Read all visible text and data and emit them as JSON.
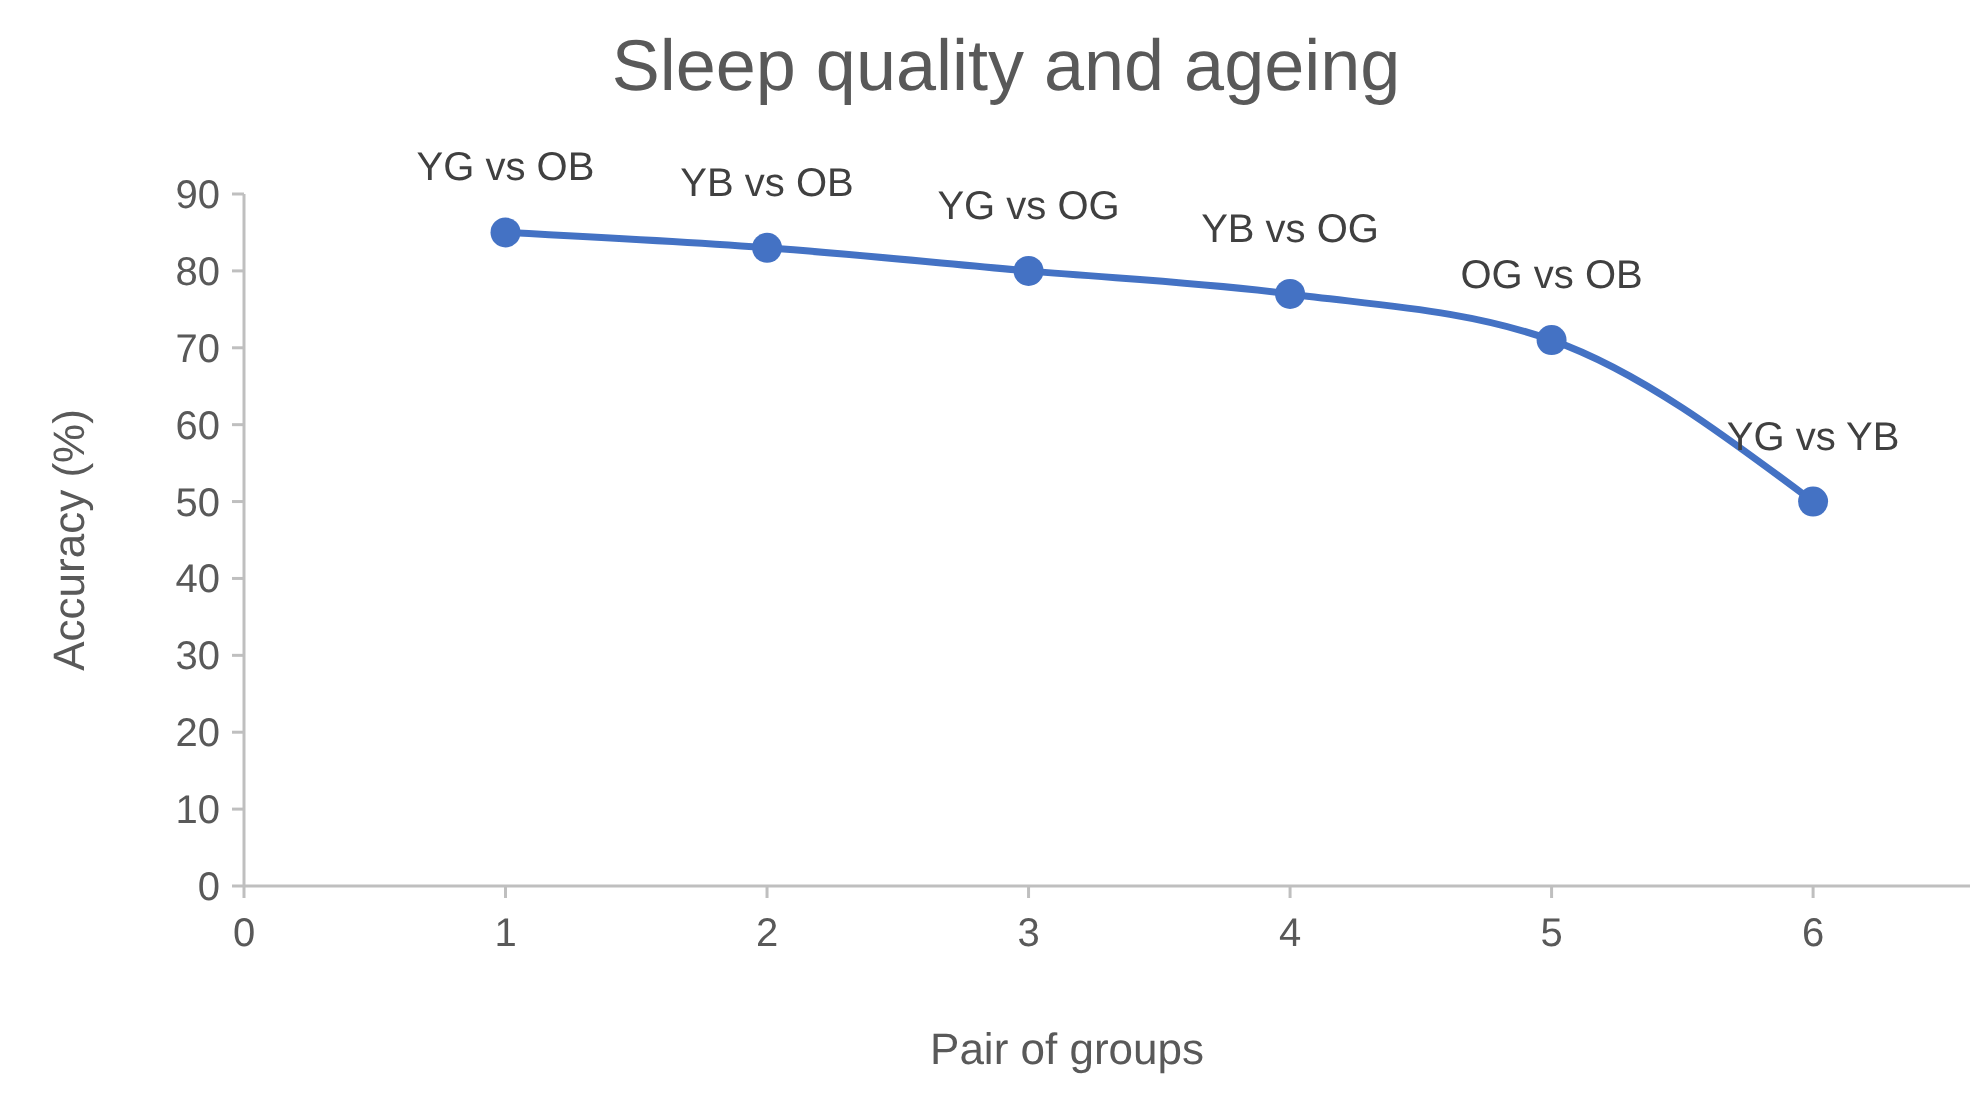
{
  "chart_data": {
    "type": "line",
    "title": "Sleep quality and ageing",
    "xlabel": "Pair of groups",
    "ylabel": "Accuracy (%)",
    "x": [
      1,
      2,
      3,
      4,
      5,
      6
    ],
    "series": [
      {
        "color": "#4472c4",
        "values": [
          85,
          83,
          80,
          77,
          71,
          50
        ]
      }
    ],
    "xlim": [
      0,
      6.6
    ],
    "xticks": [
      0,
      1,
      2,
      3,
      4,
      5,
      6
    ],
    "ylim": [
      0,
      90
    ],
    "yticks": [
      0,
      10,
      20,
      30,
      40,
      50,
      60,
      70,
      80,
      90
    ],
    "grid": false,
    "marker": "circle",
    "line_style": "solid",
    "annotations": [
      {
        "text": "YG vs OB",
        "x": 1,
        "y": 85
      },
      {
        "text": "YB vs OB",
        "x": 2,
        "y": 83
      },
      {
        "text": "YG vs OG",
        "x": 3,
        "y": 80
      },
      {
        "text": "YB vs OG",
        "x": 4,
        "y": 77
      },
      {
        "text": "OG vs OB",
        "x": 5,
        "y": 71
      },
      {
        "text": "YG vs YB",
        "x": 6,
        "y": 50
      }
    ]
  }
}
